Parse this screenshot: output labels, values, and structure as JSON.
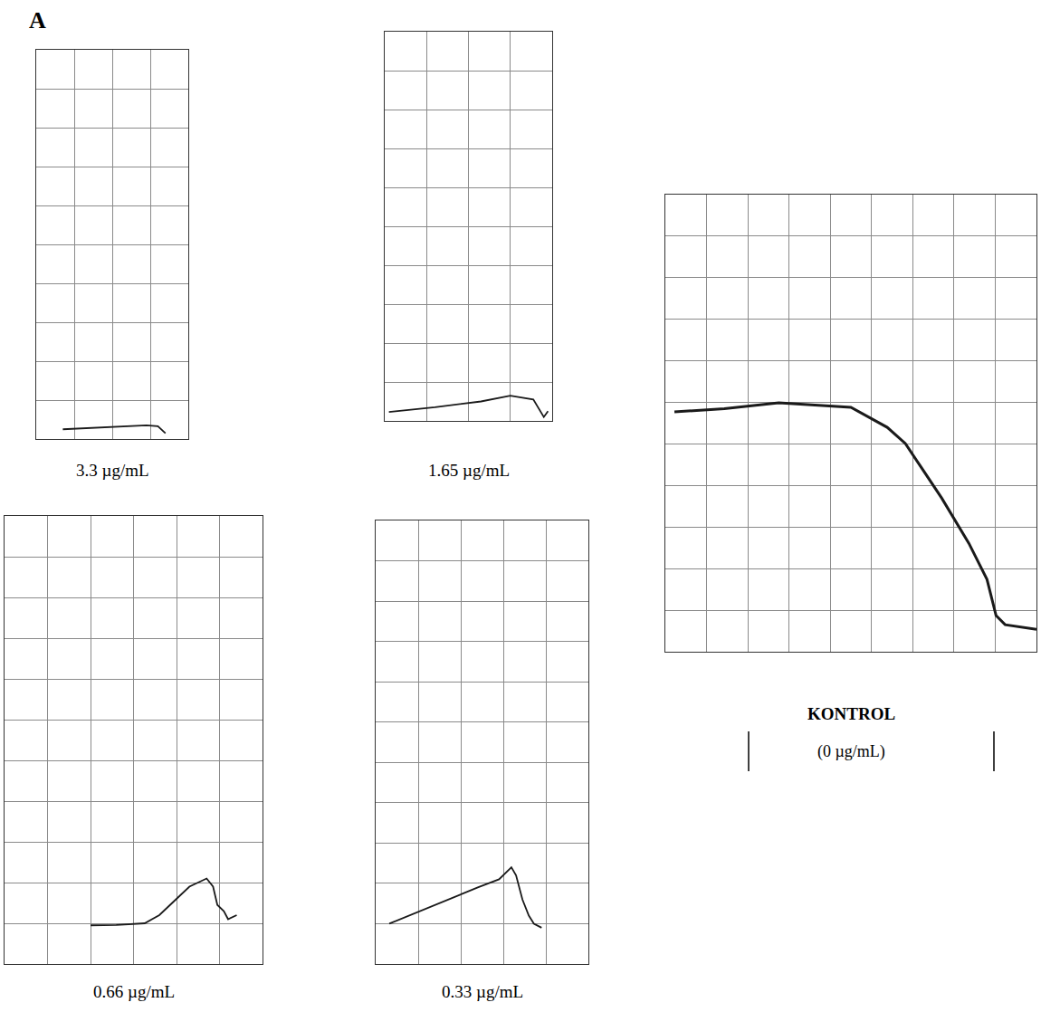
{
  "label": "A",
  "chart_data": [
    {
      "type": "line",
      "title": "3.3 µg/mL",
      "color": "#1a1a1a",
      "grid": true,
      "tick_labels": false,
      "x": [
        0.7,
        1.2,
        1.8,
        2.4,
        2.9,
        3.2,
        3.35,
        3.4
      ],
      "values": [
        0.25,
        0.27,
        0.3,
        0.33,
        0.35,
        0.33,
        0.2,
        0.15
      ],
      "xlim": [
        0,
        4
      ],
      "ylim": [
        0,
        10
      ],
      "xticks": [
        0,
        1,
        2,
        3,
        4
      ],
      "yticks": [
        0,
        1,
        2,
        3,
        4,
        5,
        6,
        7,
        8,
        9,
        10
      ]
    },
    {
      "type": "line",
      "title": "1.65 µg/mL",
      "color": "#1a1a1a",
      "grid": true,
      "tick_labels": false,
      "x": [
        0.1,
        1.2,
        2.3,
        3.0,
        3.55,
        3.8,
        3.9
      ],
      "values": [
        0.23,
        0.35,
        0.5,
        0.65,
        0.55,
        0.1,
        0.25
      ],
      "xlim": [
        0,
        4
      ],
      "ylim": [
        0,
        10
      ],
      "xticks": [
        0,
        1,
        2,
        3,
        4
      ],
      "yticks": [
        0,
        1,
        2,
        3,
        4,
        5,
        6,
        7,
        8,
        9,
        10
      ]
    },
    {
      "type": "line",
      "title": "0.66 µg/mL",
      "color": "#1a1a1a",
      "grid": true,
      "tick_labels": false,
      "x": [
        2.0,
        2.6,
        3.26,
        3.6,
        3.9,
        4.3,
        4.7,
        4.85,
        4.95,
        5.1,
        5.2,
        5.4
      ],
      "values": [
        0.95,
        0.96,
        1.0,
        1.2,
        1.5,
        1.9,
        2.1,
        1.9,
        1.45,
        1.3,
        1.1,
        1.2
      ],
      "xlim": [
        0,
        6
      ],
      "ylim": [
        0,
        11
      ],
      "xticks": [
        0,
        1,
        2,
        3,
        4,
        5,
        6
      ],
      "yticks": [
        0,
        1,
        2,
        3,
        4,
        5,
        6,
        7,
        8,
        9,
        10,
        11
      ]
    },
    {
      "type": "line",
      "title": "0.33 µg/mL",
      "color": "#1a1a1a",
      "grid": true,
      "tick_labels": false,
      "x": [
        0.32,
        1.0,
        1.7,
        2.4,
        2.9,
        3.1,
        3.19,
        3.3,
        3.45,
        3.6,
        3.72,
        3.9
      ],
      "values": [
        1.0,
        1.3,
        1.6,
        1.9,
        2.1,
        2.3,
        2.4,
        2.2,
        1.6,
        1.2,
        1.0,
        0.9
      ],
      "xlim": [
        0,
        5
      ],
      "ylim": [
        0,
        11
      ],
      "xticks": [
        0,
        1,
        2,
        3,
        4,
        5
      ],
      "yticks": [
        0,
        1,
        2,
        3,
        4,
        5,
        6,
        7,
        8,
        9,
        10,
        11
      ]
    },
    {
      "type": "line",
      "title": "KONTROL",
      "subtitle": "(0 µg/mL)",
      "color": "#1a1a1a",
      "grid": true,
      "tick_labels": false,
      "x": [
        0.22,
        1.43,
        2.75,
        4.5,
        5.38,
        5.82,
        6.7,
        7.36,
        7.8,
        8.02,
        8.24,
        9.0
      ],
      "values": [
        5.77,
        5.85,
        5.99,
        5.88,
        5.4,
        5.01,
        3.7,
        2.61,
        1.74,
        0.87,
        0.65,
        0.54
      ],
      "xlim": [
        0,
        9
      ],
      "ylim": [
        0,
        11
      ],
      "xticks": [
        0,
        1,
        2,
        3,
        4,
        5,
        6,
        7,
        8,
        9
      ],
      "yticks": [
        0,
        1,
        2,
        3,
        4,
        5,
        6,
        7,
        8,
        9,
        10,
        11
      ]
    }
  ]
}
